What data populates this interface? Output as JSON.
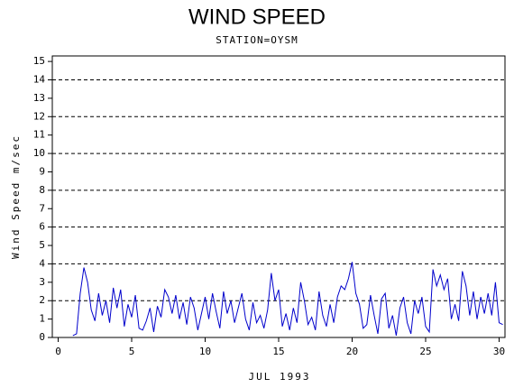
{
  "chart_data": {
    "type": "line",
    "title": "WIND SPEED",
    "subtitle": "STATION=OYSM",
    "x_label": "JUL 1993",
    "y_label": "Wind Speed m/sec",
    "xlim": [
      -0.4,
      30.4
    ],
    "xticks": [
      0,
      5,
      10,
      15,
      20,
      25,
      30
    ],
    "ylim": [
      0,
      15.3
    ],
    "yticks": [
      0,
      1,
      2,
      3,
      4,
      5,
      6,
      7,
      8,
      9,
      10,
      11,
      12,
      13,
      14,
      15
    ],
    "grid": true,
    "grid_yticks": [
      0,
      2,
      4,
      6,
      8,
      10,
      12,
      14
    ],
    "series": [
      {
        "color": "#0000cc",
        "x": [
          1,
          1.25,
          1.5,
          1.75,
          2,
          2.25,
          2.5,
          2.75,
          3,
          3.25,
          3.5,
          3.75,
          4,
          4.25,
          4.5,
          4.75,
          5,
          5.25,
          5.5,
          5.75,
          6,
          6.25,
          6.5,
          6.75,
          7,
          7.25,
          7.5,
          7.75,
          8,
          8.25,
          8.5,
          8.75,
          9,
          9.25,
          9.5,
          9.75,
          10,
          10.25,
          10.5,
          10.75,
          11,
          11.25,
          11.5,
          11.75,
          12,
          12.25,
          12.5,
          12.75,
          13,
          13.25,
          13.5,
          13.75,
          14,
          14.25,
          14.5,
          14.75,
          15,
          15.25,
          15.5,
          15.75,
          16,
          16.25,
          16.5,
          16.75,
          17,
          17.25,
          17.5,
          17.75,
          18,
          18.25,
          18.5,
          18.75,
          19,
          19.25,
          19.5,
          19.75,
          20,
          20.25,
          20.5,
          20.75,
          21,
          21.25,
          21.5,
          21.75,
          22,
          22.25,
          22.5,
          22.75,
          23,
          23.25,
          23.5,
          23.75,
          24,
          24.25,
          24.5,
          24.75,
          25,
          25.25,
          25.5,
          25.75,
          26,
          26.25,
          26.5,
          26.75,
          27,
          27.25,
          27.5,
          27.75,
          28,
          28.25,
          28.5,
          28.75,
          29,
          29.25,
          29.5,
          29.75,
          30,
          30.25
        ],
        "values": [
          0.1,
          0.2,
          2.4,
          3.8,
          3.0,
          1.5,
          0.9,
          2.4,
          1.2,
          2.0,
          0.8,
          2.7,
          1.6,
          2.6,
          0.6,
          1.8,
          1.1,
          2.3,
          0.5,
          0.4,
          0.9,
          1.6,
          0.3,
          1.7,
          1.1,
          2.6,
          2.2,
          1.3,
          2.3,
          1.0,
          1.9,
          0.7,
          2.2,
          1.6,
          0.4,
          1.3,
          2.2,
          1.0,
          2.4,
          1.4,
          0.5,
          2.5,
          1.3,
          2.0,
          0.8,
          1.6,
          2.4,
          1.0,
          0.4,
          1.9,
          0.8,
          1.2,
          0.5,
          1.5,
          3.5,
          2.0,
          2.6,
          0.6,
          1.3,
          0.4,
          1.6,
          0.8,
          3.0,
          2.0,
          0.7,
          1.1,
          0.4,
          2.5,
          1.2,
          0.6,
          1.8,
          0.8,
          2.2,
          2.8,
          2.6,
          3.2,
          4.1,
          2.4,
          1.8,
          0.5,
          0.7,
          2.3,
          1.2,
          0.2,
          2.1,
          2.4,
          0.5,
          1.2,
          0.1,
          1.6,
          2.2,
          0.8,
          0.2,
          2.0,
          1.3,
          2.2,
          0.6,
          0.3,
          3.7,
          2.8,
          3.4,
          2.6,
          3.2,
          1.0,
          1.8,
          0.9,
          3.6,
          2.8,
          1.2,
          2.5,
          1.0,
          2.2,
          1.3,
          2.4,
          1.2,
          3.0,
          0.8,
          0.7
        ]
      }
    ]
  }
}
